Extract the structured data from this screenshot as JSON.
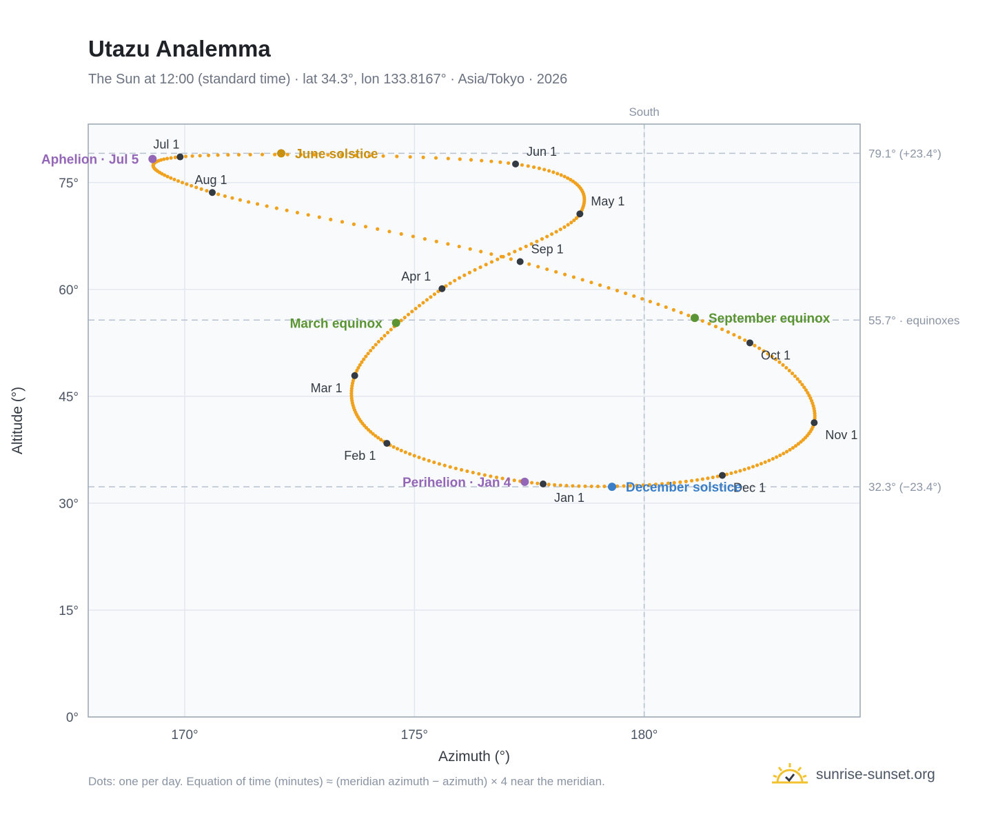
{
  "header": {
    "title": "Utazu Analemma",
    "subtitle": "The Sun at 12:00 (standard time) · lat 34.3°, lon 133.8167° · Asia/Tokyo · 2026"
  },
  "footer": {
    "note": "Dots: one per day. Equation of time (minutes) ≈ (meridian azimuth − azimuth) × 4 near the meridian.",
    "brand": "sunrise-sunset.org"
  },
  "colors": {
    "curve": "#f0a21e",
    "month_marker": "#333a42",
    "solstice_june": "#c8900c",
    "solstice_december": "#3b7ec8",
    "equinox": "#5b9432",
    "apsis": "#9466b8",
    "guide": "#b6c2cf",
    "plot_bg": "#f8fafc",
    "grid": "#e3e8ee",
    "frame": "#98a4b2"
  },
  "chart_data": {
    "type": "scatter",
    "title": "Utazu Analemma",
    "xlabel": "Azimuth (°)",
    "ylabel": "Altitude (°)",
    "xlim": [
      167.9,
      184.7
    ],
    "ylim": [
      0,
      83.2
    ],
    "x_ticks": [
      170,
      175,
      180
    ],
    "x_tick_labels": [
      "170°",
      "175°",
      "180°"
    ],
    "y_ticks": [
      0,
      15,
      30,
      45,
      60,
      75
    ],
    "y_tick_labels": [
      "0°",
      "15°",
      "30°",
      "45°",
      "60°",
      "75°"
    ],
    "grid": true,
    "meridian": {
      "azimuth": 180,
      "label": "South"
    },
    "reference_lines": [
      {
        "altitude": 79.1,
        "label": "79.1° (+23.4°)"
      },
      {
        "altitude": 55.7,
        "label": "55.7° · equinoxes"
      },
      {
        "altitude": 32.3,
        "label": "32.3° (−23.4°)"
      }
    ],
    "month_points": [
      {
        "label": "Jan 1",
        "azimuth": 177.8,
        "altitude": 32.7
      },
      {
        "label": "Feb 1",
        "azimuth": 174.4,
        "altitude": 38.4
      },
      {
        "label": "Mar 1",
        "azimuth": 173.7,
        "altitude": 47.9
      },
      {
        "label": "Apr 1",
        "azimuth": 175.6,
        "altitude": 60.1
      },
      {
        "label": "May 1",
        "azimuth": 178.6,
        "altitude": 70.6
      },
      {
        "label": "Jun 1",
        "azimuth": 177.2,
        "altitude": 77.6
      },
      {
        "label": "Jul 1",
        "azimuth": 169.9,
        "altitude": 78.6
      },
      {
        "label": "Aug 1",
        "azimuth": 170.6,
        "altitude": 73.6
      },
      {
        "label": "Sep 1",
        "azimuth": 177.3,
        "altitude": 63.9
      },
      {
        "label": "Oct 1",
        "azimuth": 182.3,
        "altitude": 52.5
      },
      {
        "label": "Nov 1",
        "azimuth": 183.7,
        "altitude": 41.3
      },
      {
        "label": "Dec 1",
        "azimuth": 181.7,
        "altitude": 33.9
      }
    ],
    "key_events": [
      {
        "label": "June solstice",
        "azimuth": 172.1,
        "altitude": 79.1,
        "kind": "solstice_june"
      },
      {
        "label": "December solstice",
        "azimuth": 179.3,
        "altitude": 32.3,
        "kind": "solstice_december"
      },
      {
        "label": "March equinox",
        "azimuth": 174.6,
        "altitude": 55.3,
        "kind": "equinox"
      },
      {
        "label": "September equinox",
        "azimuth": 181.1,
        "altitude": 56.0,
        "kind": "equinox"
      },
      {
        "label": "Perihelion · Jan 4",
        "azimuth": 177.4,
        "altitude": 33.0,
        "kind": "apsis"
      },
      {
        "label": "Aphelion · Jul 5",
        "azimuth": 169.3,
        "altitude": 78.3,
        "kind": "apsis"
      }
    ]
  }
}
